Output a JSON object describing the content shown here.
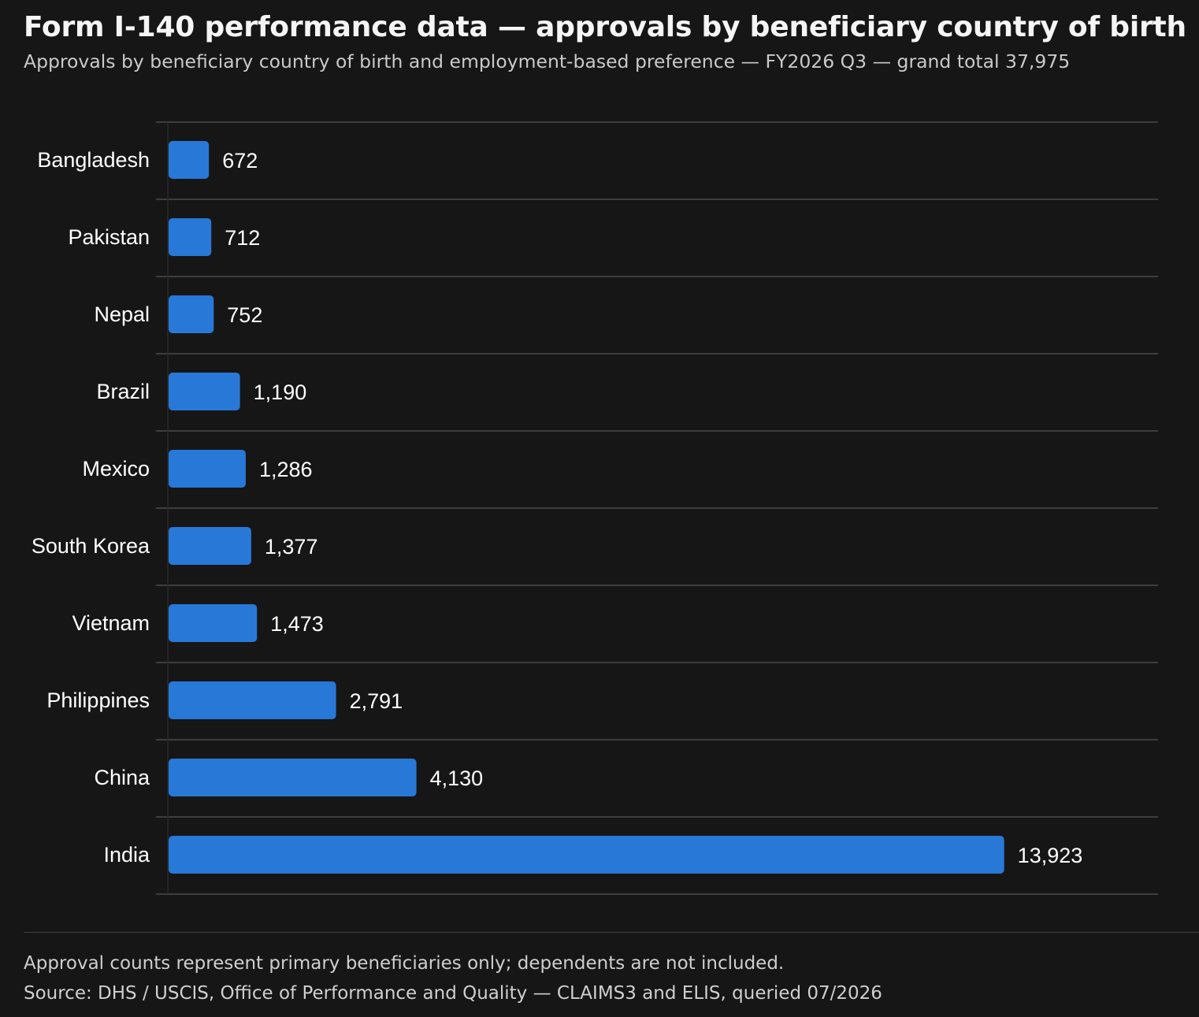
{
  "header": {
    "title": "Form I-140 performance data — approvals by beneficiary country of birth",
    "subtitle": "Approvals by beneficiary country of birth and employment-based preference — FY2026 Q3 — grand total 37,975"
  },
  "footer": {
    "note": "Approval counts represent primary beneficiaries only; dependents are not included.",
    "source": "Source: DHS / USCIS, Office of Performance and Quality — CLAIMS3 and ELIS, queried 07/2026"
  },
  "colors": {
    "background": "#161616",
    "bar": "#2878d8",
    "gridline": "#4a4a4a",
    "text": "#ffffff"
  },
  "chart_data": {
    "type": "bar",
    "orientation": "horizontal",
    "title": "Form I-140 performance data — approvals by beneficiary country of birth",
    "subtitle": "Approvals by beneficiary country of birth and employment-based preference — FY2026 Q3 — grand total 37,975",
    "categories": [
      "Bangladesh",
      "Pakistan",
      "Nepal",
      "Brazil",
      "Mexico",
      "South Korea",
      "Vietnam",
      "Philippines",
      "China",
      "India"
    ],
    "values": [
      672,
      712,
      752,
      1190,
      1286,
      1377,
      1473,
      2791,
      4130,
      13923
    ],
    "value_labels": [
      "672",
      "712",
      "752",
      "1,190",
      "1,286",
      "1,377",
      "1,473",
      "2,791",
      "4,130",
      "13,923"
    ],
    "xlim": [
      0,
      16500
    ],
    "grid": true,
    "legend": "none"
  }
}
